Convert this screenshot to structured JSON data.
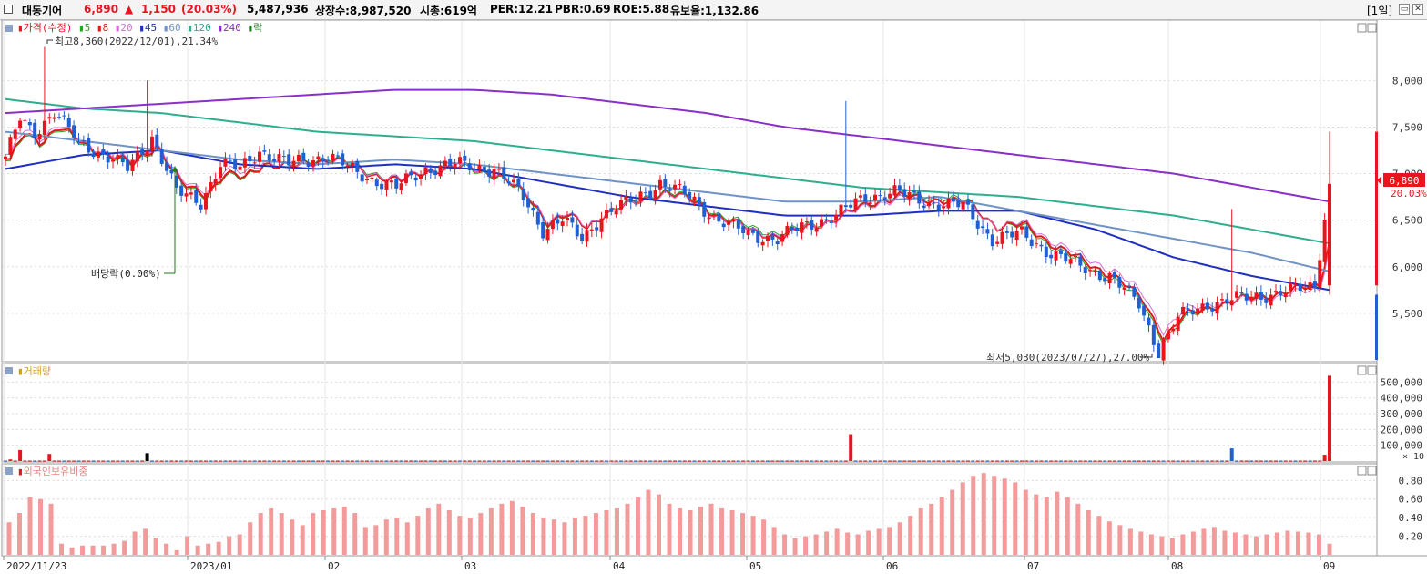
{
  "header": {
    "stock_name": "대동기어",
    "price": "6,890",
    "change_arrow": "▲",
    "change": "1,150",
    "change_pct": "(20.03%)",
    "volume": "5,487,936",
    "shares": "상장수:8,987,520",
    "market_cap": "시총:619억",
    "per": "PER:12.21",
    "pbr": "PBR:0.69",
    "roe": "ROE:5.88",
    "reserve": "유보율:1,132.86",
    "period": "[1일]"
  },
  "price_panel": {
    "legend_price": "가격(수정)",
    "legend_ma": [
      "5",
      "8",
      "20",
      "45",
      "60",
      "120",
      "240"
    ],
    "legend_ex": "락",
    "high_annotation": "최고8,360(2022/12/01),21.34%",
    "low_annotation": "최저5,030(2023/07/27),27.00%",
    "dividend_annotation": "배당락(0.00%)",
    "current_price_label": "6,890",
    "current_pct_label": "20.03%"
  },
  "volume_panel": {
    "title": "거래량",
    "unit": "× 10"
  },
  "foreign_panel": {
    "title": "외국인보유비중"
  },
  "colors": {
    "up": "#e8141e",
    "down": "#1f5fd1",
    "ma5": "#27a327",
    "ma8": "#e31a1c",
    "ma20": "#d36fd3",
    "ma45": "#1f2fbf",
    "ma60": "#6f93c7",
    "ma120": "#2fae8f",
    "ma240": "#8a2fc7",
    "foreign_bar": "#f39b9b"
  },
  "chart_data": [
    {
      "type": "line",
      "title": "가격(수정)",
      "x_tick_labels": [
        "2022/11/23",
        "2023/01",
        "02",
        "03",
        "04",
        "05",
        "06",
        "07",
        "08",
        "09"
      ],
      "y_ticks": [
        "8,000",
        "7,500",
        "7,000",
        "6,500",
        "6,000",
        "5,500"
      ],
      "ylim": [
        5000,
        8600
      ],
      "close_trend": [
        [
          0,
          7150
        ],
        [
          3,
          7600
        ],
        [
          6,
          7450
        ],
        [
          10,
          7650
        ],
        [
          15,
          7350
        ],
        [
          20,
          7200
        ],
        [
          25,
          7050
        ],
        [
          30,
          7400
        ],
        [
          35,
          6800
        ],
        [
          40,
          6700
        ],
        [
          44,
          7100
        ],
        [
          48,
          7050
        ],
        [
          52,
          7250
        ],
        [
          58,
          7100
        ],
        [
          66,
          7200
        ],
        [
          72,
          7000
        ],
        [
          80,
          6850
        ],
        [
          86,
          7050
        ],
        [
          92,
          7100
        ],
        [
          100,
          7050
        ],
        [
          106,
          6750
        ],
        [
          110,
          6400
        ],
        [
          114,
          6500
        ],
        [
          118,
          6300
        ],
        [
          122,
          6550
        ],
        [
          128,
          6700
        ],
        [
          134,
          6900
        ],
        [
          140,
          6750
        ],
        [
          146,
          6500
        ],
        [
          152,
          6350
        ],
        [
          158,
          6300
        ],
        [
          164,
          6450
        ],
        [
          170,
          6550
        ],
        [
          176,
          6750
        ],
        [
          182,
          6800
        ],
        [
          188,
          6700
        ],
        [
          196,
          6650
        ],
        [
          202,
          6300
        ],
        [
          208,
          6350
        ],
        [
          214,
          6150
        ],
        [
          220,
          6000
        ],
        [
          226,
          5900
        ],
        [
          232,
          5600
        ],
        [
          236,
          5100
        ],
        [
          240,
          5450
        ],
        [
          246,
          5600
        ],
        [
          252,
          5650
        ],
        [
          258,
          5700
        ],
        [
          264,
          5750
        ],
        [
          268,
          5800
        ],
        [
          271,
          6890
        ]
      ],
      "series": [
        {
          "name": "5",
          "values": [
            7050,
            7200,
            7100,
            6700,
            7150,
            7100,
            6950,
            6600,
            6700,
            6650,
            6450,
            6500,
            6900,
            6600,
            5950,
            5350,
            5700,
            5800
          ]
        },
        {
          "name": "8",
          "values": [
            7100,
            7250,
            7150,
            6750,
            7100,
            7050,
            7000,
            6650,
            6650,
            6600,
            6350,
            6550,
            6800,
            6650,
            6050,
            5450,
            5650,
            5850
          ]
        },
        {
          "name": "20",
          "values": [
            7250,
            7300,
            7200,
            6900,
            7050,
            7100,
            7000,
            6700,
            6650,
            6550,
            6400,
            6500,
            6700,
            6700,
            6200,
            5650,
            5600,
            5700
          ]
        },
        {
          "name": "45",
          "values": [
            7050,
            7200,
            7250,
            7100,
            7050,
            7100,
            7050,
            6900,
            6750,
            6650,
            6550,
            6550,
            6600,
            6600,
            6400,
            6100,
            5900,
            5750
          ]
        },
        {
          "name": "60",
          "values": [
            7450,
            7350,
            7250,
            7150,
            7100,
            7150,
            7100,
            7000,
            6900,
            6800,
            6700,
            6700,
            6750,
            6600,
            6450,
            6300,
            6150,
            5950
          ]
        },
        {
          "name": "120",
          "values": [
            7800,
            7700,
            7650,
            7550,
            7450,
            7400,
            7350,
            7250,
            7150,
            7050,
            6950,
            6850,
            6800,
            6750,
            6650,
            6550,
            6400,
            6250
          ]
        },
        {
          "name": "240",
          "values": [
            7650,
            7700,
            7750,
            7800,
            7850,
            7900,
            7900,
            7850,
            7750,
            7650,
            7500,
            7400,
            7300,
            7200,
            7100,
            7000,
            6850,
            6700
          ]
        }
      ]
    },
    {
      "type": "bar",
      "title": "거래량",
      "unit": "× 10",
      "y_ticks": [
        "500,000",
        "400,000",
        "300,000",
        "200,000",
        "100,000"
      ],
      "ylim": [
        0,
        600000
      ],
      "baseline": 3000,
      "spikes": [
        [
          1,
          10000,
          "up"
        ],
        [
          3,
          70000,
          "up"
        ],
        [
          9,
          45000,
          "up"
        ],
        [
          29,
          50000,
          "black"
        ],
        [
          173,
          170000,
          "up"
        ],
        [
          251,
          80000,
          "down"
        ],
        [
          270,
          40000,
          "up"
        ],
        [
          271,
          540000,
          "up"
        ]
      ]
    },
    {
      "type": "bar",
      "title": "외국인보유비중",
      "y_ticks": [
        "0.80",
        "0.60",
        "0.40",
        "0.20"
      ],
      "ylim": [
        0,
        0.95
      ],
      "values": [
        0.35,
        0.45,
        0.62,
        0.6,
        0.55,
        0.12,
        0.08,
        0.1,
        0.1,
        0.1,
        0.12,
        0.15,
        0.25,
        0.28,
        0.18,
        0.12,
        0.05,
        0.2,
        0.1,
        0.12,
        0.14,
        0.2,
        0.22,
        0.35,
        0.45,
        0.5,
        0.45,
        0.38,
        0.32,
        0.45,
        0.48,
        0.5,
        0.52,
        0.45,
        0.3,
        0.32,
        0.38,
        0.4,
        0.35,
        0.42,
        0.5,
        0.55,
        0.48,
        0.42,
        0.4,
        0.45,
        0.5,
        0.55,
        0.58,
        0.52,
        0.45,
        0.4,
        0.38,
        0.35,
        0.4,
        0.42,
        0.45,
        0.48,
        0.5,
        0.55,
        0.62,
        0.7,
        0.65,
        0.55,
        0.5,
        0.48,
        0.52,
        0.55,
        0.5,
        0.48,
        0.45,
        0.42,
        0.38,
        0.3,
        0.22,
        0.18,
        0.2,
        0.22,
        0.25,
        0.28,
        0.24,
        0.22,
        0.26,
        0.28,
        0.3,
        0.35,
        0.42,
        0.5,
        0.55,
        0.62,
        0.7,
        0.78,
        0.85,
        0.88,
        0.85,
        0.82,
        0.78,
        0.7,
        0.65,
        0.62,
        0.68,
        0.62,
        0.55,
        0.48,
        0.42,
        0.36,
        0.32,
        0.28,
        0.25,
        0.22,
        0.2,
        0.18,
        0.22,
        0.25,
        0.28,
        0.3,
        0.26,
        0.24,
        0.22,
        0.2,
        0.22,
        0.24,
        0.26,
        0.25,
        0.24,
        0.22,
        0.12
      ]
    }
  ]
}
